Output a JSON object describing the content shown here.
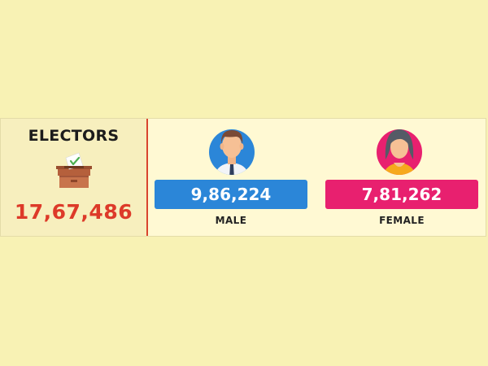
{
  "electors": {
    "title": "ELECTORS",
    "total": "17,67,486",
    "icon": "ballot-box-icon"
  },
  "male": {
    "count": "9,86,224",
    "label": "MALE",
    "icon": "male-avatar-icon",
    "color": "#2b86d8"
  },
  "female": {
    "count": "7,81,262",
    "label": "FEMALE",
    "icon": "female-avatar-icon",
    "color": "#e8206f"
  },
  "colors": {
    "background": "#f8f2b4",
    "total_text": "#dd3a29",
    "divider": "#d9452e"
  }
}
